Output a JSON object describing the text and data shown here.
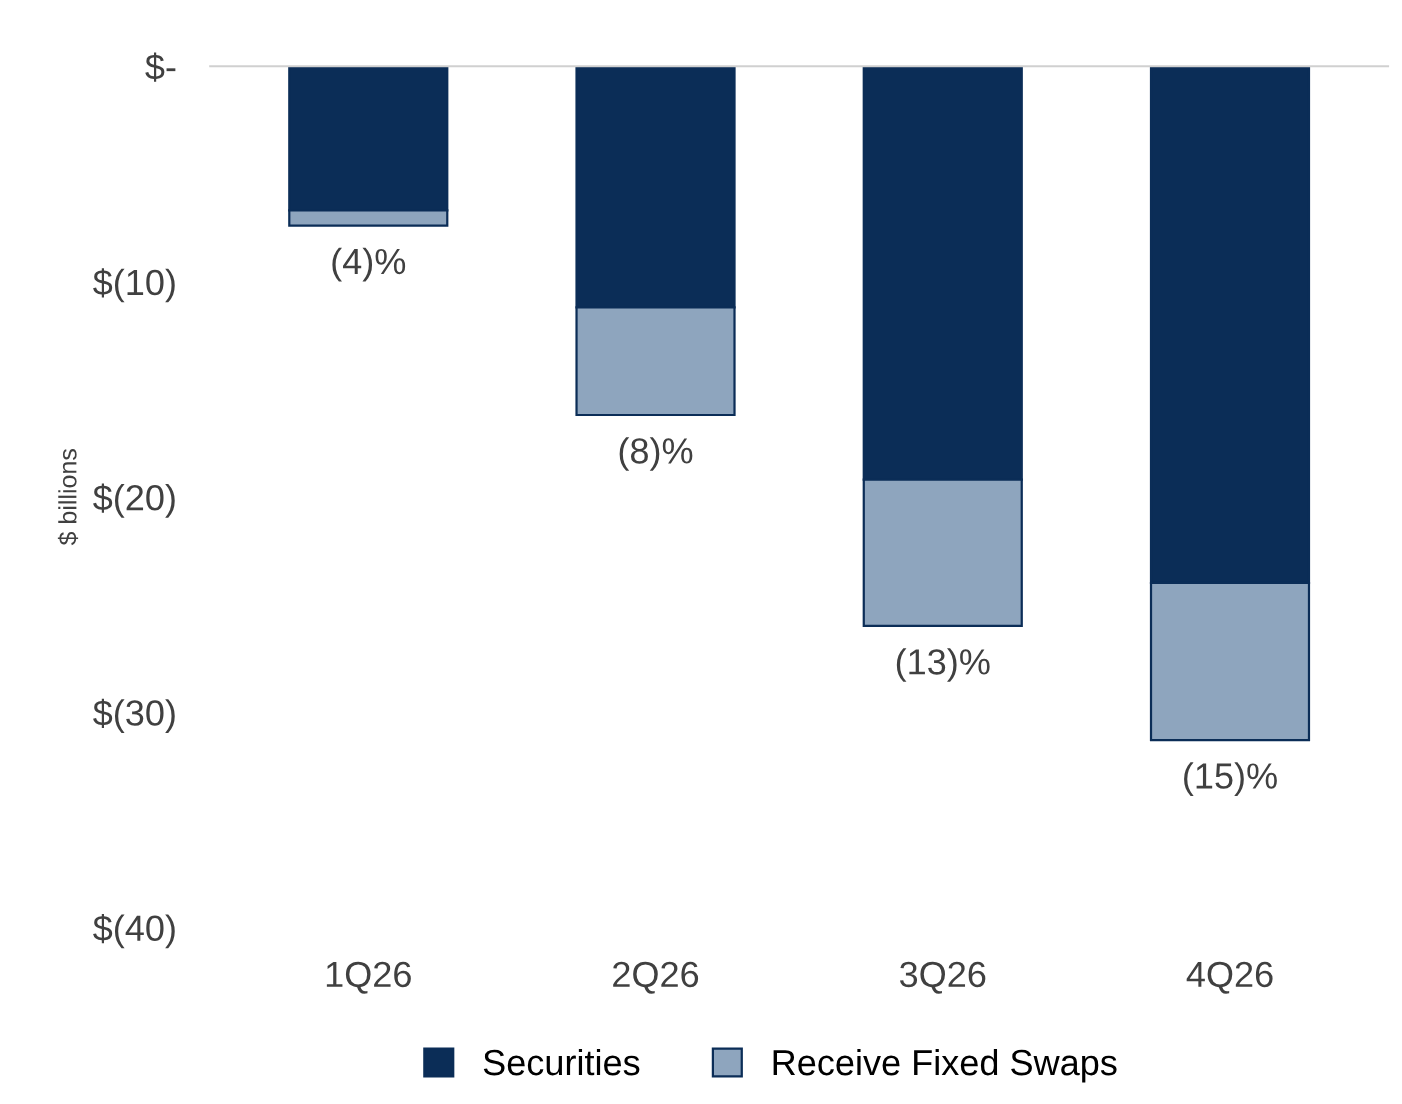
{
  "chart_data": {
    "type": "bar",
    "stacked": true,
    "ylabel": "$ billions",
    "categories": [
      "1Q26",
      "2Q26",
      "3Q26",
      "4Q26"
    ],
    "series": [
      {
        "name": "Securities",
        "color": "#0b2d57",
        "values": [
          -6.7,
          -11.2,
          -19.2,
          -24.0
        ]
      },
      {
        "name": "Receive Fixed Swaps",
        "color": "#8ea5be",
        "values": [
          -0.7,
          -5.0,
          -6.8,
          -7.3
        ]
      }
    ],
    "ylim": [
      -40,
      0
    ],
    "yticks": [
      {
        "value": 0,
        "label": "$-"
      },
      {
        "value": -10,
        "label": "$(10)"
      },
      {
        "value": -20,
        "label": "$(20)"
      },
      {
        "value": -30,
        "label": "$(30)"
      },
      {
        "value": -40,
        "label": "$(40)"
      }
    ],
    "annotations": [
      {
        "text": "(4)%",
        "x": "1Q26",
        "y": -7.4
      },
      {
        "text": "(8)%",
        "x": "2Q26",
        "y": -16.2
      },
      {
        "text": "(13)%",
        "x": "3Q26",
        "y": -26.0
      },
      {
        "text": "(15)%",
        "x": "4Q26",
        "y": -31.3
      }
    ],
    "grid": false,
    "legend": "bottom"
  }
}
